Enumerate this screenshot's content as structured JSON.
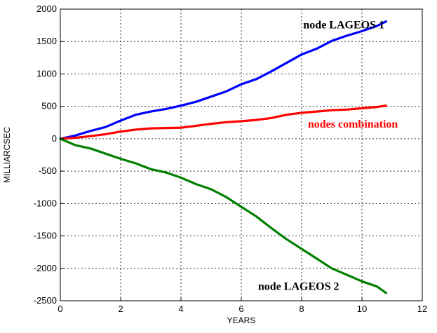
{
  "chart_data": {
    "type": "line",
    "title": "",
    "xlabel": "YEARS",
    "ylabel": "MILLIARCSEC",
    "xlim": [
      0,
      12
    ],
    "ylim": [
      -2500,
      2000
    ],
    "xticks": [
      0,
      2,
      4,
      6,
      8,
      10,
      12
    ],
    "yticks": [
      2000,
      1500,
      1000,
      500,
      0,
      -500,
      -1000,
      -1500,
      -2000,
      -2500
    ],
    "grid": true,
    "series": [
      {
        "name": "node LAGEOS 1",
        "color": "#0000ff",
        "x": [
          0,
          0.5,
          1,
          1.5,
          2,
          2.5,
          3,
          3.5,
          4,
          4.5,
          5,
          5.5,
          6,
          6.5,
          7,
          7.5,
          8,
          8.5,
          9,
          9.5,
          10,
          10.5,
          10.8
        ],
        "y": [
          0,
          50,
          120,
          180,
          280,
          370,
          420,
          460,
          510,
          570,
          650,
          730,
          840,
          920,
          1040,
          1170,
          1300,
          1390,
          1510,
          1590,
          1660,
          1740,
          1810
        ]
      },
      {
        "name": "nodes combination",
        "color": "#ff0000",
        "x": [
          0,
          0.5,
          1,
          1.5,
          2,
          2.5,
          3,
          3.5,
          4,
          4.5,
          5,
          5.5,
          6,
          6.5,
          7,
          7.5,
          8,
          8.5,
          9,
          9.5,
          10,
          10.5,
          10.8
        ],
        "y": [
          0,
          15,
          40,
          70,
          110,
          140,
          160,
          165,
          170,
          200,
          230,
          255,
          270,
          290,
          320,
          370,
          400,
          420,
          440,
          450,
          470,
          490,
          510
        ]
      },
      {
        "name": "node LAGEOS 2",
        "color": "#008000",
        "x": [
          0,
          0.5,
          1,
          1.5,
          2,
          2.5,
          3,
          3.5,
          4,
          4.5,
          5,
          5.5,
          6,
          6.5,
          7,
          7.5,
          8,
          8.5,
          9,
          9.5,
          10,
          10.5,
          10.8
        ],
        "y": [
          0,
          -100,
          -150,
          -230,
          -310,
          -380,
          -470,
          -520,
          -600,
          -700,
          -780,
          -900,
          -1050,
          -1200,
          -1380,
          -1550,
          -1700,
          -1850,
          -2000,
          -2100,
          -2200,
          -2280,
          -2380
        ]
      }
    ],
    "annotations": [
      {
        "text": "node LAGEOS 1",
        "color": "#000000",
        "x": 9.4,
        "y": 1700
      },
      {
        "text": "nodes combination",
        "color": "#ff0000",
        "x": 9.7,
        "y": 170
      },
      {
        "text": "node LAGEOS 2",
        "color": "#000000",
        "x": 7.9,
        "y": -2330
      }
    ]
  }
}
